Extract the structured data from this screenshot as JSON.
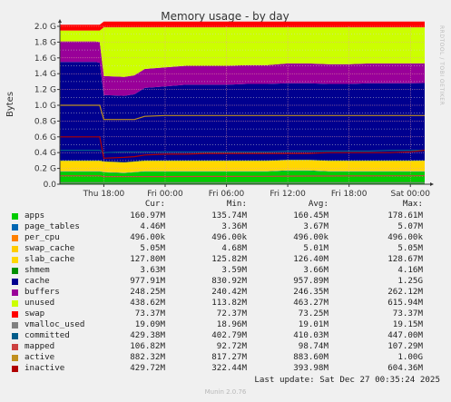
{
  "page": {
    "last_update": "Last update:  Sat Dec 27 00:35:24 2025",
    "footer": "Munin 2.0.76",
    "watermark": "RRDTOOL / TOBI OETIKER"
  },
  "colors": {
    "background": "#f0f0f0",
    "plot_background": "#ffffff",
    "grid_major": "#e8a0a0",
    "grid_minor": "#d0d0d0"
  },
  "chart_data": {
    "type": "area",
    "title": "Memory usage - by day",
    "ylabel": "Bytes",
    "xlabel": "",
    "x_ticks": [
      "Thu 18:00",
      "Fri 00:00",
      "Fri 06:00",
      "Fri 12:00",
      "Fri 18:00",
      "Sat 00:00"
    ],
    "x_tick_hours": [
      0,
      6,
      12,
      18,
      24,
      30
    ],
    "x_range_hours": [
      -4.3,
      31.4
    ],
    "y_ticks": [
      "0.0",
      "0.2 G",
      "0.4 G",
      "0.6 G",
      "0.8 G",
      "1.0 G",
      "1.2 G",
      "1.4 G",
      "1.6 G",
      "1.8 G",
      "2.0 G"
    ],
    "y_tick_values": [
      0,
      0.2,
      0.4,
      0.6,
      0.8,
      1.0,
      1.2,
      1.4,
      1.6,
      1.8,
      2.0
    ],
    "ylim": [
      0,
      2.0
    ],
    "y_unit": "GB",
    "grid": true,
    "legend_placement": "bottom",
    "stack_total": 2.02,
    "x_hours": [
      -4.3,
      -0.8,
      -0.4,
      0.0,
      2.0,
      3.0,
      4.0,
      6.0,
      8.0,
      10.0,
      12.0,
      14.0,
      16.0,
      18.0,
      20.0,
      22.0,
      24.0,
      26.0,
      28.0,
      30.0,
      31.4
    ],
    "series": [
      {
        "name": "apps",
        "color": "#00cc00",
        "values": [
          0.16,
          0.16,
          0.16,
          0.15,
          0.14,
          0.15,
          0.16,
          0.16,
          0.16,
          0.16,
          0.16,
          0.16,
          0.16,
          0.17,
          0.17,
          0.16,
          0.16,
          0.16,
          0.16,
          0.16,
          0.16
        ]
      },
      {
        "name": "page_tables",
        "color": "#0066b3",
        "values": [
          0.0045,
          0.0045,
          0.0045,
          0.0045,
          0.0045,
          0.0045,
          0.0045,
          0.0045,
          0.0045,
          0.0045,
          0.0045,
          0.0045,
          0.0045,
          0.0045,
          0.0045,
          0.0045,
          0.0045,
          0.0045,
          0.0045,
          0.0045,
          0.0045
        ]
      },
      {
        "name": "per_cpu",
        "color": "#ff8000",
        "values": [
          0.0005,
          0.0005,
          0.0005,
          0.0005,
          0.0005,
          0.0005,
          0.0005,
          0.0005,
          0.0005,
          0.0005,
          0.0005,
          0.0005,
          0.0005,
          0.0005,
          0.0005,
          0.0005,
          0.0005,
          0.0005,
          0.0005,
          0.0005,
          0.0005
        ]
      },
      {
        "name": "swap_cache",
        "color": "#ffcc00",
        "values": [
          0.005,
          0.005,
          0.005,
          0.005,
          0.005,
          0.005,
          0.005,
          0.005,
          0.005,
          0.005,
          0.005,
          0.005,
          0.005,
          0.005,
          0.005,
          0.005,
          0.005,
          0.005,
          0.005,
          0.005,
          0.005
        ]
      },
      {
        "name": "slab_cache",
        "color": "#ffd700",
        "values": [
          0.126,
          0.126,
          0.126,
          0.126,
          0.126,
          0.126,
          0.126,
          0.126,
          0.126,
          0.126,
          0.126,
          0.126,
          0.126,
          0.126,
          0.126,
          0.126,
          0.126,
          0.126,
          0.126,
          0.126,
          0.128
        ]
      },
      {
        "name": "shmem",
        "color": "#008f00",
        "values": [
          0.0036,
          0.0036,
          0.0036,
          0.0036,
          0.0036,
          0.0036,
          0.0036,
          0.0036,
          0.0036,
          0.0036,
          0.0036,
          0.0036,
          0.0036,
          0.0036,
          0.0036,
          0.0036,
          0.0036,
          0.0036,
          0.0036,
          0.0036,
          0.0036
        ]
      },
      {
        "name": "cache",
        "color": "#00008f",
        "values": [
          1.25,
          1.25,
          1.24,
          0.84,
          0.84,
          0.85,
          0.92,
          0.94,
          0.96,
          0.96,
          0.96,
          0.97,
          0.97,
          0.97,
          0.97,
          0.97,
          0.97,
          0.98,
          0.98,
          0.98,
          0.98
        ]
      },
      {
        "name": "buffers",
        "color": "#990099",
        "values": [
          0.26,
          0.26,
          0.26,
          0.24,
          0.24,
          0.24,
          0.24,
          0.24,
          0.24,
          0.24,
          0.24,
          0.24,
          0.24,
          0.25,
          0.25,
          0.25,
          0.25,
          0.25,
          0.25,
          0.25,
          0.25
        ]
      },
      {
        "name": "unused",
        "color": "#ccff00",
        "values": [
          0.1378,
          0.1378,
          0.1478,
          0.6178,
          0.6278,
          0.6078,
          0.5278,
          0.5078,
          0.4878,
          0.4878,
          0.4878,
          0.4778,
          0.4778,
          0.4578,
          0.4578,
          0.4678,
          0.4678,
          0.4578,
          0.4578,
          0.4578,
          0.4558
        ]
      },
      {
        "name": "swap",
        "color": "#ff0000",
        "values": [
          0.073,
          0.073,
          0.073,
          0.073,
          0.073,
          0.073,
          0.073,
          0.073,
          0.073,
          0.073,
          0.073,
          0.073,
          0.073,
          0.073,
          0.073,
          0.073,
          0.073,
          0.073,
          0.073,
          0.073,
          0.073
        ]
      }
    ],
    "lines": [
      {
        "name": "vmalloc_used",
        "color": "#808080",
        "values": [
          0.019,
          0.019,
          0.019,
          0.019,
          0.019,
          0.019,
          0.019,
          0.019,
          0.019,
          0.019,
          0.019,
          0.019,
          0.019,
          0.019,
          0.019,
          0.019,
          0.019,
          0.019,
          0.019,
          0.019,
          0.019
        ]
      },
      {
        "name": "committed",
        "color": "#005c8a",
        "values": [
          0.43,
          0.43,
          0.43,
          0.4,
          0.41,
          0.41,
          0.41,
          0.41,
          0.41,
          0.41,
          0.41,
          0.41,
          0.41,
          0.42,
          0.42,
          0.42,
          0.42,
          0.42,
          0.43,
          0.43,
          0.43
        ]
      },
      {
        "name": "mapped",
        "color": "#cc4040",
        "values": [
          0.106,
          0.106,
          0.106,
          0.095,
          0.095,
          0.095,
          0.096,
          0.097,
          0.098,
          0.099,
          0.099,
          0.1,
          0.1,
          0.102,
          0.103,
          0.104,
          0.105,
          0.105,
          0.106,
          0.106,
          0.107
        ]
      },
      {
        "name": "active",
        "color": "#c09020",
        "values": [
          1.0,
          1.0,
          1.0,
          0.82,
          0.82,
          0.82,
          0.86,
          0.87,
          0.87,
          0.87,
          0.87,
          0.87,
          0.87,
          0.87,
          0.87,
          0.87,
          0.87,
          0.87,
          0.87,
          0.87,
          0.87
        ]
      },
      {
        "name": "inactive",
        "color": "#b00000",
        "values": [
          0.6,
          0.6,
          0.6,
          0.33,
          0.34,
          0.35,
          0.37,
          0.38,
          0.38,
          0.39,
          0.39,
          0.39,
          0.39,
          0.39,
          0.39,
          0.4,
          0.4,
          0.4,
          0.4,
          0.41,
          0.43
        ]
      }
    ],
    "legend": {
      "headers": [
        "",
        "Cur:",
        "Min:",
        "Avg:",
        "Max:"
      ],
      "rows": [
        {
          "name": "apps",
          "color": "#00cc00",
          "cur": "160.97M",
          "min": "135.74M",
          "avg": "160.45M",
          "max": "178.61M"
        },
        {
          "name": "page_tables",
          "color": "#0066b3",
          "cur": "4.46M",
          "min": "3.36M",
          "avg": "3.67M",
          "max": "5.07M"
        },
        {
          "name": "per_cpu",
          "color": "#ff8000",
          "cur": "496.00k",
          "min": "496.00k",
          "avg": "496.00k",
          "max": "496.00k"
        },
        {
          "name": "swap_cache",
          "color": "#ffcc00",
          "cur": "5.05M",
          "min": "4.68M",
          "avg": "5.01M",
          "max": "5.05M"
        },
        {
          "name": "slab_cache",
          "color": "#ffd700",
          "cur": "127.80M",
          "min": "125.82M",
          "avg": "126.40M",
          "max": "128.67M"
        },
        {
          "name": "shmem",
          "color": "#008f00",
          "cur": "3.63M",
          "min": "3.59M",
          "avg": "3.66M",
          "max": "4.16M"
        },
        {
          "name": "cache",
          "color": "#00008f",
          "cur": "977.91M",
          "min": "830.92M",
          "avg": "957.89M",
          "max": "1.25G"
        },
        {
          "name": "buffers",
          "color": "#990099",
          "cur": "248.25M",
          "min": "240.42M",
          "avg": "246.35M",
          "max": "262.12M"
        },
        {
          "name": "unused",
          "color": "#ccff00",
          "cur": "438.62M",
          "min": "113.82M",
          "avg": "463.27M",
          "max": "615.94M"
        },
        {
          "name": "swap",
          "color": "#ff0000",
          "cur": "73.37M",
          "min": "72.37M",
          "avg": "73.25M",
          "max": "73.37M"
        },
        {
          "name": "vmalloc_used",
          "color": "#808080",
          "cur": "19.09M",
          "min": "18.96M",
          "avg": "19.01M",
          "max": "19.15M"
        },
        {
          "name": "committed",
          "color": "#005c8a",
          "cur": "429.38M",
          "min": "402.79M",
          "avg": "410.03M",
          "max": "447.00M"
        },
        {
          "name": "mapped",
          "color": "#cc4040",
          "cur": "106.82M",
          "min": "92.72M",
          "avg": "98.74M",
          "max": "107.29M"
        },
        {
          "name": "active",
          "color": "#c09020",
          "cur": "882.32M",
          "min": "817.27M",
          "avg": "883.60M",
          "max": "1.00G"
        },
        {
          "name": "inactive",
          "color": "#b00000",
          "cur": "429.72M",
          "min": "322.44M",
          "avg": "393.98M",
          "max": "604.36M"
        }
      ]
    }
  }
}
